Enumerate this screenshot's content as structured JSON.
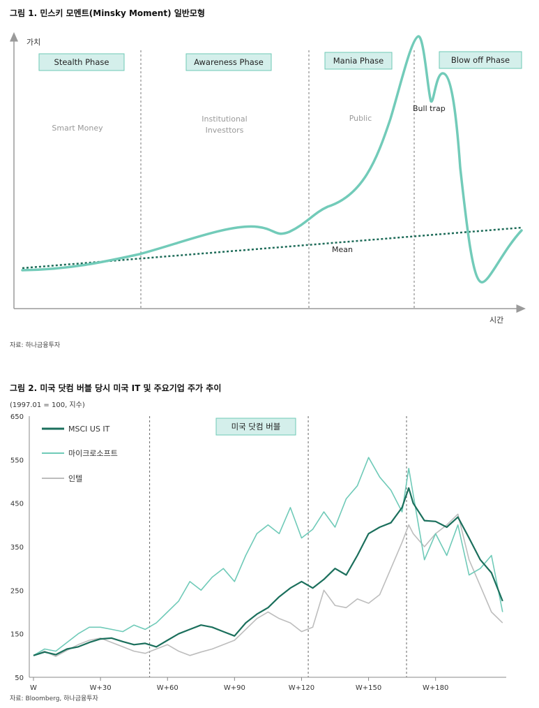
{
  "fig1": {
    "title": "그림 1. 민스키 모멘트(Minsky Moment) 일반모형",
    "source": "자료: 하나금융투자",
    "y_axis_label": "가치",
    "x_axis_label": "시간",
    "phases": [
      "Stealth Phase",
      "Awareness Phase",
      "Mania Phase",
      "Blow off Phase"
    ],
    "participants": [
      "Smart Money",
      "Institutional",
      "Investtors",
      "Public"
    ],
    "annotations": {
      "bull_trap": "Bull trap",
      "mean": "Mean"
    },
    "colors": {
      "value_line": "#72cbb9",
      "mean_line": "#1d6b58",
      "phase_box_fill": "#d4efeb",
      "phase_box_border": "#6ec9b6"
    }
  },
  "fig2": {
    "title": "그림 2. 미국 닷컴 버블 당시 미국 IT 및 주요기업 주가 추이",
    "unit": "(1997.01 = 100, 지수)",
    "source": "자료: Bloomberg, 하나금융투자",
    "bubble_label": "미국 닷컴 버블",
    "colors": {
      "msci": "#1b6f5c",
      "microsoft": "#6fcab8",
      "intel": "#bdbdbd"
    }
  },
  "chart_data": [
    {
      "type": "line",
      "title": "그림 1. 민스키 모멘트(Minsky Moment) 일반모형",
      "xlabel": "시간",
      "ylabel": "가치",
      "x": [
        0,
        5,
        10,
        15,
        20,
        25,
        30,
        33,
        36,
        40,
        45,
        50,
        55,
        60,
        65,
        70,
        75,
        77,
        78,
        80,
        82,
        83,
        85,
        87,
        90,
        93,
        95,
        100
      ],
      "series": [
        {
          "name": "",
          "values": [
            6,
            7,
            9,
            11,
            14,
            18,
            22,
            23,
            20,
            27,
            38,
            52,
            85,
            100,
            83,
            94,
            35,
            15,
            13,
            14,
            20,
            25,
            34,
            44,
            53,
            60,
            63,
            67
          ]
        },
        {
          "name": "Mean",
          "values": [
            6,
            9,
            12,
            15,
            18,
            21,
            24,
            26,
            28,
            30,
            33,
            36,
            39,
            42,
            45,
            48,
            51,
            52,
            53,
            54,
            55,
            56,
            57,
            58,
            60,
            62,
            63,
            66
          ]
        }
      ],
      "phase_dividers_x": [
        23,
        55,
        75
      ]
    },
    {
      "type": "line",
      "title": "그림 2. 미국 닷컴 버블 당시 미국 IT 및 주요기업 주가 추이",
      "ylim": [
        50,
        650
      ],
      "yticks": [
        50,
        150,
        250,
        350,
        450,
        550,
        650
      ],
      "xticks": [
        "W",
        "W+30",
        "W+60",
        "W+90",
        "W+120",
        "W+150",
        "W+180"
      ],
      "xtick_values": [
        0,
        30,
        60,
        90,
        120,
        150,
        180
      ],
      "xlim": [
        0,
        211
      ],
      "bubble_dividers_x": [
        52,
        123,
        167
      ],
      "x": [
        0,
        5,
        10,
        15,
        20,
        25,
        30,
        35,
        40,
        45,
        50,
        55,
        60,
        65,
        70,
        75,
        80,
        85,
        90,
        95,
        100,
        105,
        110,
        115,
        120,
        125,
        130,
        135,
        140,
        145,
        150,
        155,
        160,
        165,
        168,
        170,
        175,
        180,
        185,
        190,
        195,
        200,
        205,
        210
      ],
      "series": [
        {
          "name": "MSCI US IT",
          "values": [
            100,
            108,
            102,
            115,
            120,
            130,
            138,
            140,
            132,
            125,
            128,
            120,
            135,
            150,
            160,
            170,
            165,
            155,
            145,
            175,
            195,
            210,
            235,
            255,
            270,
            255,
            275,
            300,
            285,
            330,
            380,
            395,
            405,
            440,
            485,
            450,
            410,
            408,
            395,
            418,
            370,
            320,
            290,
            225
          ]
        },
        {
          "name": "마이크로소프트",
          "values": [
            100,
            115,
            110,
            130,
            150,
            165,
            165,
            160,
            155,
            170,
            160,
            175,
            200,
            225,
            270,
            250,
            280,
            300,
            270,
            330,
            380,
            400,
            380,
            440,
            370,
            390,
            430,
            395,
            460,
            490,
            555,
            510,
            480,
            430,
            530,
            470,
            320,
            380,
            330,
            400,
            285,
            300,
            330,
            200
          ]
        },
        {
          "name": "인텔",
          "values": [
            100,
            110,
            98,
            112,
            125,
            135,
            140,
            130,
            120,
            110,
            105,
            115,
            125,
            110,
            100,
            108,
            115,
            125,
            135,
            160,
            185,
            200,
            185,
            175,
            155,
            165,
            250,
            215,
            210,
            230,
            220,
            240,
            300,
            360,
            400,
            380,
            350,
            380,
            400,
            425,
            320,
            260,
            200,
            175
          ]
        }
      ],
      "legend": "top-left"
    }
  ]
}
